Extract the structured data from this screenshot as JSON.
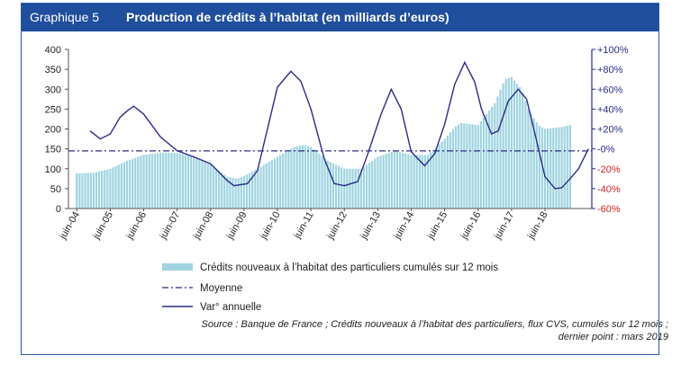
{
  "header": {
    "label": "Graphique 5",
    "title": "Production de crédits à l’habitat (en milliards d’euros)"
  },
  "source": {
    "line1": "Source : Banque de France ; Crédits nouveaux à l’habitat des particuliers, flux CVS, cumulés sur 12 mois ;",
    "line2": "dernier point : mars 2019"
  },
  "colors": {
    "header_bg": "#1f4e9c",
    "bars": "#9fd4e0",
    "line": "#2b2b8c",
    "moyenne": "#2b2b8c",
    "right_axis_positive": "#2b2b8c",
    "right_axis_negative": "#cc2222"
  },
  "chart_data": {
    "type": "bar+line",
    "x_tick_labels": [
      "juin-04",
      "juin-05",
      "juin-06",
      "juin-07",
      "juin-08",
      "juin-09",
      "juin-10",
      "juin-11",
      "juin-12",
      "juin-13",
      "juin-14",
      "juin-15",
      "juin-16",
      "juin-17",
      "juin-18"
    ],
    "y_left": {
      "ticks": [
        0,
        50,
        100,
        150,
        200,
        250,
        300,
        350,
        400
      ],
      "range": [
        0,
        400
      ]
    },
    "y_right": {
      "ticks": [
        "-60%",
        "-40%",
        "-20%",
        "-0%",
        "+20%",
        "+40%",
        "+60%",
        "+80%",
        "+100%"
      ],
      "range": [
        -60,
        100
      ]
    },
    "legend": {
      "bars": "Crédits nouveaux à l’habitat des particuliers cumulés sur 12 mois",
      "moyenne": "Moyenne",
      "line": "Var° annuelle"
    },
    "moyenne_value": 145,
    "series_bars": {
      "name": "Crédits nouveaux à l’habitat des particuliers cumulés sur 12 mois",
      "axis": "left",
      "anchors_year_value": [
        [
          2004.5,
          88
        ],
        [
          2005.0,
          90
        ],
        [
          2005.5,
          100
        ],
        [
          2006.0,
          120
        ],
        [
          2006.5,
          135
        ],
        [
          2007.0,
          140
        ],
        [
          2007.5,
          140
        ],
        [
          2008.0,
          130
        ],
        [
          2008.5,
          110
        ],
        [
          2009.0,
          80
        ],
        [
          2009.3,
          75
        ],
        [
          2009.5,
          82
        ],
        [
          2010.0,
          105
        ],
        [
          2010.5,
          130
        ],
        [
          2011.0,
          155
        ],
        [
          2011.3,
          160
        ],
        [
          2011.5,
          155
        ],
        [
          2012.0,
          120
        ],
        [
          2012.5,
          100
        ],
        [
          2013.0,
          100
        ],
        [
          2013.5,
          130
        ],
        [
          2014.0,
          145
        ],
        [
          2014.5,
          135
        ],
        [
          2015.0,
          135
        ],
        [
          2015.5,
          175
        ],
        [
          2015.8,
          205
        ],
        [
          2016.0,
          215
        ],
        [
          2016.5,
          210
        ],
        [
          2017.0,
          265
        ],
        [
          2017.3,
          325
        ],
        [
          2017.5,
          330
        ],
        [
          2017.8,
          300
        ],
        [
          2018.0,
          250
        ],
        [
          2018.3,
          210
        ],
        [
          2018.5,
          200
        ],
        [
          2019.0,
          205
        ],
        [
          2019.25,
          210
        ]
      ]
    },
    "series_line": {
      "name": "Var° annuelle",
      "axis": "right",
      "points_year_pct": [
        [
          2004.9,
          18
        ],
        [
          2005.2,
          10
        ],
        [
          2005.5,
          15
        ],
        [
          2005.8,
          32
        ],
        [
          2006.0,
          38
        ],
        [
          2006.2,
          43
        ],
        [
          2006.5,
          35
        ],
        [
          2007.0,
          12
        ],
        [
          2007.5,
          -2
        ],
        [
          2008.0,
          -8
        ],
        [
          2008.5,
          -15
        ],
        [
          2009.0,
          -32
        ],
        [
          2009.2,
          -37
        ],
        [
          2009.6,
          -35
        ],
        [
          2009.9,
          -22
        ],
        [
          2010.2,
          20
        ],
        [
          2010.5,
          62
        ],
        [
          2010.9,
          78
        ],
        [
          2011.2,
          68
        ],
        [
          2011.5,
          40
        ],
        [
          2011.9,
          -10
        ],
        [
          2012.2,
          -35
        ],
        [
          2012.5,
          -37
        ],
        [
          2012.9,
          -33
        ],
        [
          2013.2,
          -5
        ],
        [
          2013.6,
          35
        ],
        [
          2013.9,
          60
        ],
        [
          2014.2,
          40
        ],
        [
          2014.5,
          -3
        ],
        [
          2014.9,
          -17
        ],
        [
          2015.2,
          -5
        ],
        [
          2015.5,
          25
        ],
        [
          2015.8,
          65
        ],
        [
          2016.1,
          87
        ],
        [
          2016.4,
          67
        ],
        [
          2016.6,
          40
        ],
        [
          2016.9,
          15
        ],
        [
          2017.1,
          18
        ],
        [
          2017.4,
          48
        ],
        [
          2017.7,
          60
        ],
        [
          2017.95,
          50
        ],
        [
          2018.2,
          15
        ],
        [
          2018.5,
          -28
        ],
        [
          2018.8,
          -40
        ],
        [
          2019.0,
          -39
        ],
        [
          2019.25,
          -30
        ],
        [
          2019.5,
          -20
        ],
        [
          2019.8,
          0
        ]
      ]
    },
    "x_year_range": [
      2004.25,
      2019.9
    ],
    "grid": false
  }
}
